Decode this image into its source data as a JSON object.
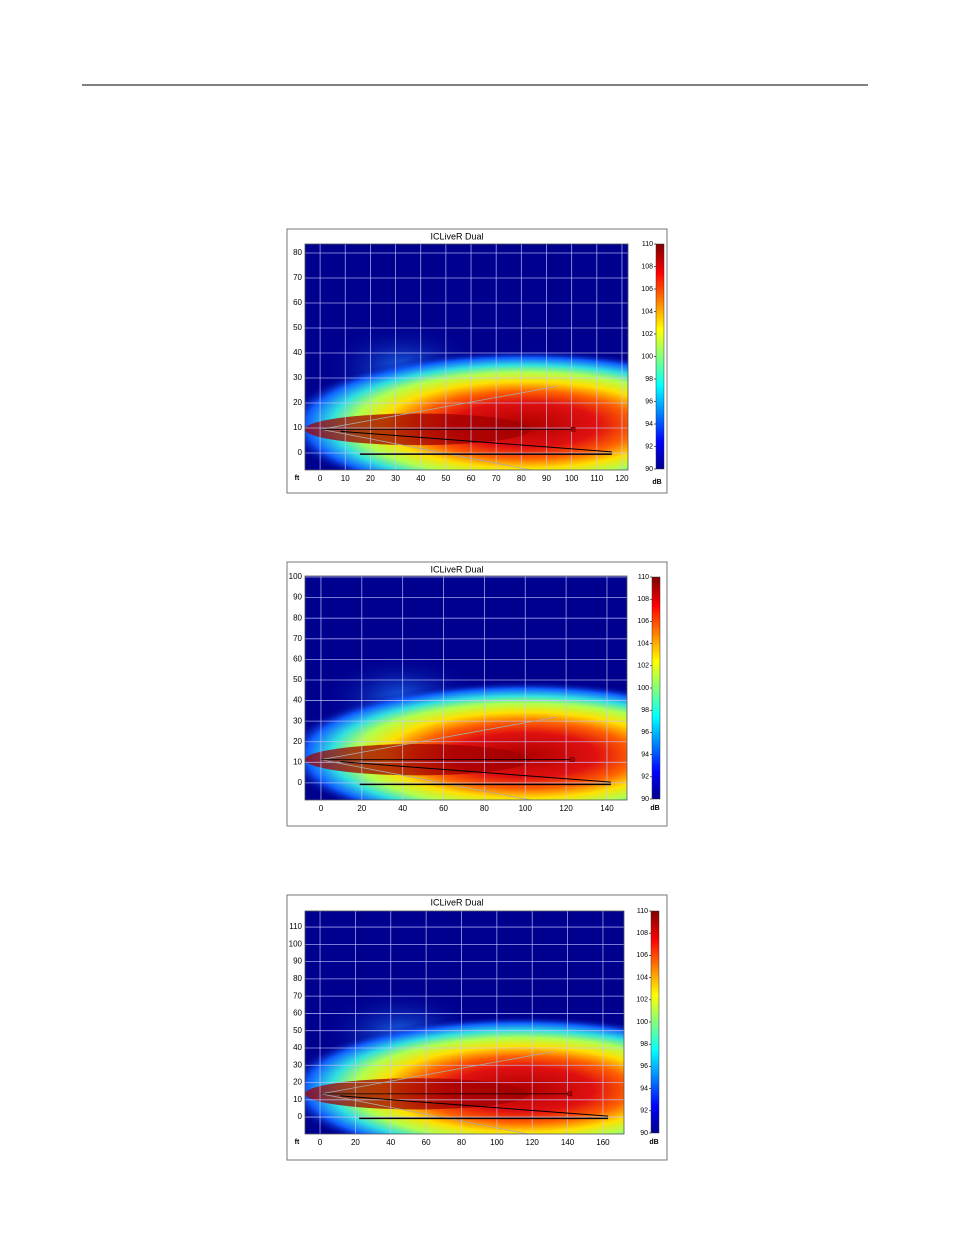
{
  "figures": [
    {
      "title": "ICLiveR Dual",
      "x_unit": "ft",
      "xlim": [
        -6,
        122.4
      ],
      "xticks": [
        0,
        10,
        20,
        30,
        40,
        50,
        60,
        70,
        80,
        90,
        100,
        110,
        120
      ],
      "ylim": [
        -6.8,
        83.6
      ],
      "yticks": [
        0,
        10,
        20,
        30,
        40,
        50,
        60,
        70,
        80
      ],
      "colorbar_lim": [
        90,
        110
      ],
      "colorbar_ticks": [
        90,
        92,
        94,
        96,
        98,
        100,
        102,
        104,
        106,
        108,
        110
      ],
      "colorbar_unit": "dB"
    },
    {
      "title": "ICLiveR Dual",
      "xlim": [
        -7.8,
        149.8
      ],
      "xticks": [
        0,
        20,
        40,
        60,
        80,
        100,
        120,
        140
      ],
      "ylim": [
        -8.3,
        100.5
      ],
      "yticks": [
        0,
        10,
        20,
        30,
        40,
        50,
        60,
        70,
        80,
        90,
        100
      ],
      "colorbar_lim": [
        90,
        110
      ],
      "colorbar_ticks": [
        90,
        92,
        94,
        96,
        98,
        100,
        102,
        104,
        106,
        108,
        110
      ],
      "colorbar_unit": "dB"
    },
    {
      "title": "ICLiveR Dual",
      "x_unit": "ft",
      "xlim": [
        -8.5,
        171.9
      ],
      "xticks": [
        0,
        20,
        40,
        60,
        80,
        100,
        120,
        140,
        160
      ],
      "ylim": [
        -9.8,
        119.3
      ],
      "yticks": [
        0,
        10,
        20,
        30,
        40,
        50,
        60,
        70,
        80,
        90,
        100,
        110
      ],
      "colorbar_lim": [
        90,
        110
      ],
      "colorbar_ticks": [
        90,
        92,
        94,
        96,
        98,
        100,
        102,
        104,
        106,
        108,
        110
      ],
      "colorbar_unit": "dB"
    }
  ]
}
